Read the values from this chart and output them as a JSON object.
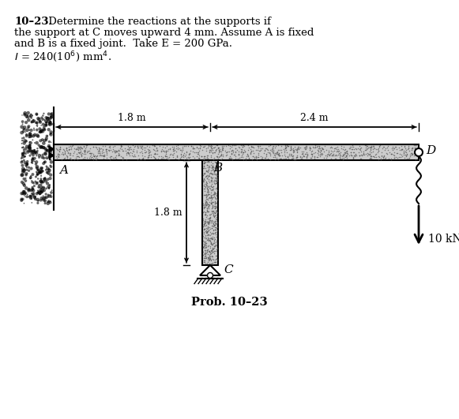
{
  "title_bold": "10–23.",
  "title_rest": " Determine the reactions at the supports if",
  "title_line2": "the support at C moves upward 4 mm. Assume A is fixed",
  "title_line3": "and B is a fixed joint.  Take E = 200 GPa.",
  "title_line4": "I = 240(10⁶) mm⁴.",
  "prob_label": "Prob. 10–23",
  "label_A": "A",
  "label_B": "B",
  "label_C": "C",
  "label_D": "D",
  "dim_AB": "1.8 m",
  "dim_BD": "2.4 m",
  "dim_BC": "1.8 m",
  "force_label": "10 kN",
  "bg_color": "#ffffff"
}
